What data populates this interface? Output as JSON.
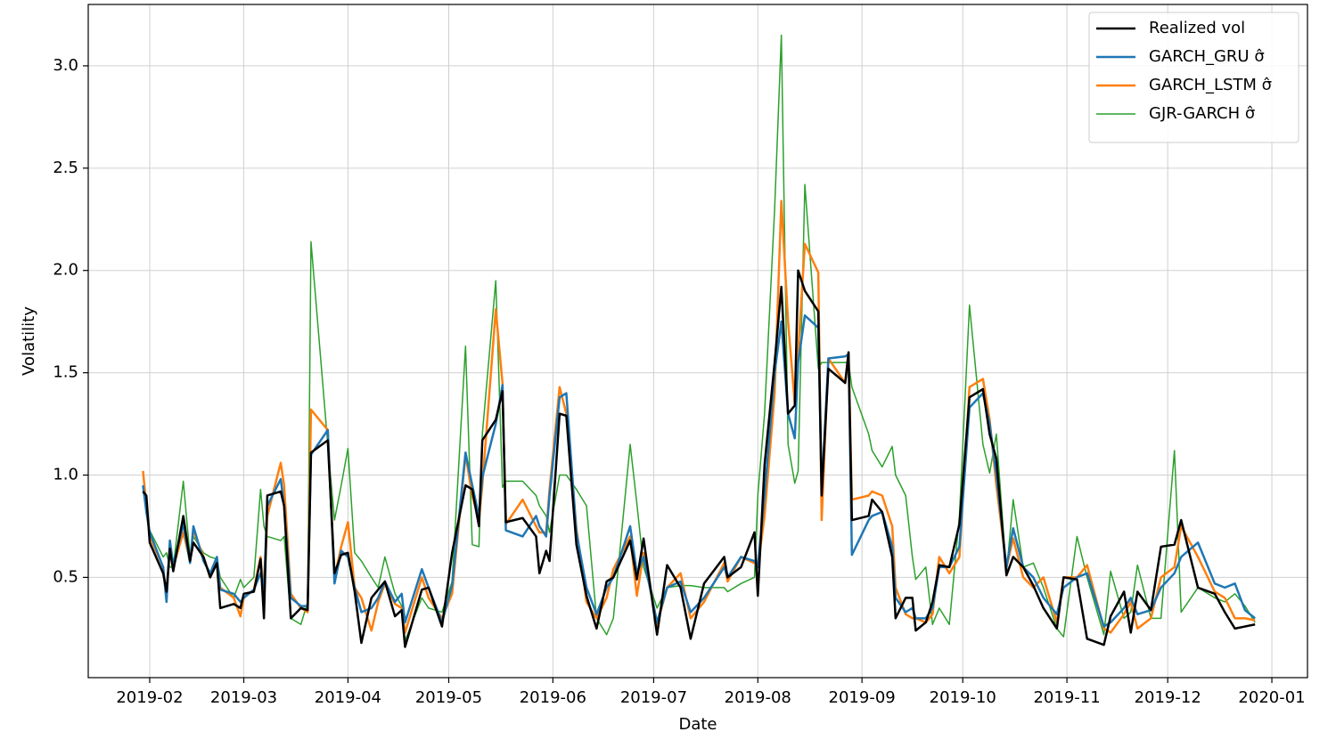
{
  "chart_data": {
    "type": "line",
    "x_label": "Date",
    "y_label": "Volatility",
    "x": [
      30,
      31,
      32,
      36,
      37,
      38,
      39,
      42,
      44,
      45,
      48,
      50,
      52,
      53,
      57,
      59,
      60,
      63,
      65,
      66,
      67,
      71,
      72,
      74,
      77,
      79,
      80,
      85,
      87,
      89,
      91,
      93,
      95,
      98,
      100,
      102,
      105,
      107,
      108,
      113,
      115,
      119,
      122,
      126,
      128,
      130,
      131,
      135,
      137,
      138,
      143,
      147,
      148,
      150,
      151,
      154,
      156,
      159,
      162,
      165,
      168,
      170,
      175,
      177,
      179,
      183,
      186,
      190,
      193,
      197,
      203,
      204,
      208,
      212,
      213,
      215,
      218,
      220,
      222,
      224,
      225,
      227,
      231,
      232,
      234,
      239,
      240,
      241,
      246,
      247,
      250,
      253,
      254,
      257,
      259,
      260,
      263,
      265,
      267,
      270,
      273,
      276,
      280,
      282,
      284,
      287,
      289,
      292,
      295,
      298,
      302,
      304,
      308,
      311,
      316,
      318,
      322,
      324,
      326,
      330,
      333,
      337,
      339,
      344,
      349,
      352,
      355,
      358,
      361
    ],
    "series": [
      {
        "name": "Realized vol",
        "color": "#000000",
        "values": [
          0.92,
          0.9,
          0.67,
          0.52,
          0.43,
          0.64,
          0.53,
          0.8,
          0.58,
          0.67,
          0.6,
          0.5,
          0.57,
          0.35,
          0.37,
          0.35,
          0.42,
          0.43,
          0.59,
          0.3,
          0.9,
          0.92,
          0.85,
          0.3,
          0.35,
          0.34,
          1.11,
          1.17,
          0.52,
          0.61,
          0.62,
          0.43,
          0.18,
          0.4,
          0.44,
          0.48,
          0.31,
          0.34,
          0.16,
          0.44,
          0.45,
          0.26,
          0.62,
          0.95,
          0.93,
          0.75,
          1.17,
          1.27,
          1.41,
          0.77,
          0.79,
          0.7,
          0.52,
          0.63,
          0.58,
          1.3,
          1.29,
          0.66,
          0.41,
          0.25,
          0.48,
          0.5,
          0.68,
          0.49,
          0.69,
          0.22,
          0.56,
          0.45,
          0.2,
          0.47,
          0.6,
          0.5,
          0.55,
          0.72,
          0.41,
          1.05,
          1.55,
          1.92,
          1.3,
          1.34,
          2.0,
          1.9,
          1.8,
          0.9,
          1.52,
          1.45,
          1.6,
          0.78,
          0.8,
          0.88,
          0.82,
          0.6,
          0.3,
          0.4,
          0.4,
          0.24,
          0.28,
          0.38,
          0.56,
          0.55,
          0.76,
          1.38,
          1.42,
          1.2,
          1.08,
          0.51,
          0.6,
          0.55,
          0.46,
          0.35,
          0.25,
          0.5,
          0.49,
          0.2,
          0.17,
          0.31,
          0.43,
          0.23,
          0.43,
          0.34,
          0.65,
          0.66,
          0.78,
          0.45,
          0.42,
          0.33,
          0.25,
          0.26,
          0.27
        ]
      },
      {
        "name": "GARCH_GRU σ̂",
        "color": "#1f77b4",
        "values": [
          0.95,
          0.82,
          0.72,
          0.55,
          0.38,
          0.68,
          0.56,
          0.76,
          0.57,
          0.75,
          0.58,
          0.52,
          0.6,
          0.44,
          0.42,
          0.38,
          0.4,
          0.44,
          0.52,
          0.45,
          0.85,
          0.98,
          0.85,
          0.4,
          0.36,
          0.36,
          1.1,
          1.22,
          0.47,
          0.63,
          0.6,
          0.45,
          0.33,
          0.35,
          0.4,
          0.48,
          0.38,
          0.42,
          0.28,
          0.54,
          0.45,
          0.28,
          0.46,
          1.11,
          0.95,
          0.8,
          0.99,
          1.25,
          1.44,
          0.73,
          0.7,
          0.8,
          0.75,
          0.7,
          0.9,
          1.38,
          1.4,
          0.72,
          0.45,
          0.32,
          0.45,
          0.5,
          0.75,
          0.52,
          0.6,
          0.28,
          0.45,
          0.48,
          0.33,
          0.4,
          0.55,
          0.5,
          0.6,
          0.58,
          0.55,
          0.9,
          1.5,
          1.75,
          1.3,
          1.18,
          1.55,
          1.78,
          1.72,
          0.92,
          1.57,
          1.58,
          1.59,
          0.61,
          0.78,
          0.8,
          0.82,
          0.65,
          0.4,
          0.33,
          0.35,
          0.3,
          0.3,
          0.35,
          0.55,
          0.55,
          0.65,
          1.33,
          1.4,
          1.25,
          1.0,
          0.55,
          0.74,
          0.55,
          0.5,
          0.4,
          0.32,
          0.45,
          0.5,
          0.52,
          0.26,
          0.28,
          0.35,
          0.4,
          0.32,
          0.34,
          0.45,
          0.52,
          0.6,
          0.67,
          0.47,
          0.45,
          0.47,
          0.34,
          0.3
        ]
      },
      {
        "name": "GARCH_LSTM σ̂",
        "color": "#ff7f0e",
        "values": [
          1.02,
          0.85,
          0.7,
          0.55,
          0.4,
          0.65,
          0.55,
          0.72,
          0.58,
          0.73,
          0.6,
          0.5,
          0.58,
          0.45,
          0.4,
          0.31,
          0.4,
          0.44,
          0.6,
          0.41,
          0.8,
          1.06,
          0.95,
          0.42,
          0.35,
          0.33,
          1.32,
          1.22,
          0.5,
          0.65,
          0.77,
          0.45,
          0.4,
          0.24,
          0.38,
          0.47,
          0.37,
          0.35,
          0.23,
          0.5,
          0.4,
          0.3,
          0.42,
          1.1,
          0.9,
          0.78,
          0.95,
          1.81,
          1.45,
          0.76,
          0.88,
          0.75,
          0.72,
          0.72,
          0.93,
          1.43,
          1.3,
          0.74,
          0.38,
          0.3,
          0.4,
          0.54,
          0.7,
          0.41,
          0.62,
          0.27,
          0.45,
          0.52,
          0.3,
          0.38,
          0.57,
          0.48,
          0.6,
          0.57,
          0.55,
          0.8,
          1.4,
          2.34,
          1.75,
          1.35,
          1.6,
          2.13,
          1.99,
          0.78,
          1.57,
          1.45,
          1.6,
          0.88,
          0.9,
          0.92,
          0.9,
          0.75,
          0.45,
          0.32,
          0.3,
          0.3,
          0.28,
          0.32,
          0.6,
          0.52,
          0.6,
          1.43,
          1.47,
          1.27,
          0.95,
          0.55,
          0.69,
          0.5,
          0.45,
          0.5,
          0.28,
          0.5,
          0.5,
          0.56,
          0.25,
          0.23,
          0.32,
          0.38,
          0.25,
          0.3,
          0.5,
          0.55,
          0.75,
          0.6,
          0.43,
          0.4,
          0.3,
          0.3,
          0.29
        ]
      },
      {
        "name": "GJR-GARCH σ̂",
        "color": "#2ca02c",
        "values": [
          0.92,
          0.85,
          0.73,
          0.6,
          0.62,
          0.55,
          0.55,
          0.97,
          0.6,
          0.7,
          0.62,
          0.6,
          0.59,
          0.5,
          0.4,
          0.49,
          0.45,
          0.5,
          0.93,
          0.75,
          0.7,
          0.68,
          0.7,
          0.3,
          0.27,
          0.38,
          2.14,
          1.15,
          0.78,
          0.95,
          1.13,
          0.62,
          0.58,
          0.5,
          0.45,
          0.6,
          0.42,
          0.36,
          0.19,
          0.4,
          0.35,
          0.33,
          0.48,
          1.63,
          0.66,
          0.65,
          1.2,
          1.95,
          0.94,
          0.97,
          0.97,
          0.9,
          0.85,
          0.8,
          0.72,
          1.0,
          1.0,
          0.93,
          0.85,
          0.3,
          0.22,
          0.3,
          1.15,
          0.86,
          0.55,
          0.35,
          0.45,
          0.46,
          0.46,
          0.45,
          0.45,
          0.43,
          0.47,
          0.5,
          0.9,
          1.3,
          2.3,
          3.15,
          1.15,
          0.96,
          1.02,
          2.42,
          1.52,
          1.55,
          1.55,
          1.55,
          1.55,
          1.43,
          1.2,
          1.12,
          1.04,
          1.14,
          1.0,
          0.9,
          0.6,
          0.49,
          0.55,
          0.27,
          0.35,
          0.27,
          0.8,
          1.83,
          1.15,
          1.01,
          1.2,
          0.52,
          0.88,
          0.55,
          0.57,
          0.45,
          0.25,
          0.21,
          0.7,
          0.5,
          0.22,
          0.53,
          0.3,
          0.33,
          0.56,
          0.3,
          0.3,
          1.12,
          0.33,
          0.45,
          0.4,
          0.38,
          0.42,
          0.36,
          0.28
        ]
      }
    ],
    "xlim": [
      13.7,
      376.6
    ],
    "xticks": [
      {
        "value": 32,
        "label": "2019-02"
      },
      {
        "value": 60,
        "label": "2019-03"
      },
      {
        "value": 91,
        "label": "2019-04"
      },
      {
        "value": 121,
        "label": "2019-05"
      },
      {
        "value": 152,
        "label": "2019-06"
      },
      {
        "value": 182,
        "label": "2019-07"
      },
      {
        "value": 213,
        "label": "2019-08"
      },
      {
        "value": 244,
        "label": "2019-09"
      },
      {
        "value": 274,
        "label": "2019-10"
      },
      {
        "value": 305,
        "label": "2019-11"
      },
      {
        "value": 335,
        "label": "2019-12"
      },
      {
        "value": 366,
        "label": "2020-01"
      }
    ],
    "ylim": [
      0.01,
      3.3
    ],
    "yticks": [
      0.5,
      {
        "value": 1,
        "label": "1.0"
      },
      1.5,
      {
        "value": 2,
        "label": "2.0"
      },
      2.5,
      {
        "value": 3,
        "label": "3.0"
      }
    ],
    "grid": true,
    "legend": "upper right"
  }
}
